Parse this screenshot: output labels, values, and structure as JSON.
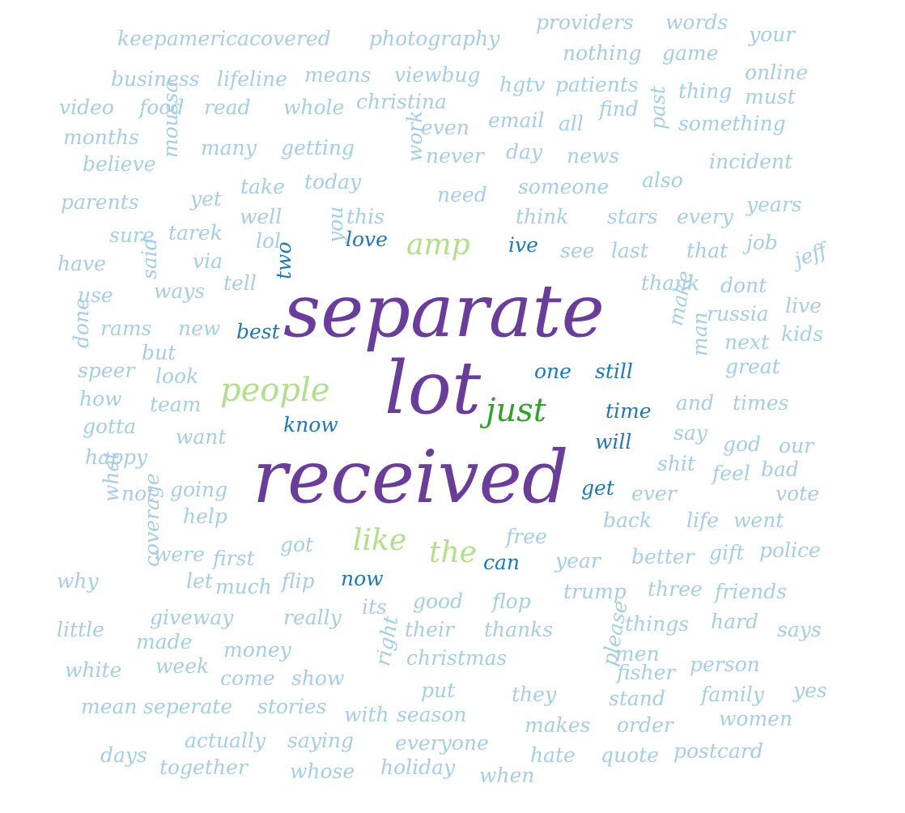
{
  "palette": {
    "dark_purple": "#6a3d9a",
    "mid_green": "#33a02c",
    "light_green": "#b2df8a",
    "mid_blue": "#1f78b4",
    "light_blue": "#a6cee3"
  },
  "words": [
    {
      "text": "separate",
      "tier": "xl",
      "color": "dark_purple"
    },
    {
      "text": "lot",
      "tier": "xl",
      "color": "dark_purple"
    },
    {
      "text": "received",
      "tier": "xl",
      "color": "dark_purple"
    },
    {
      "text": "people",
      "tier": "l",
      "color": "light_green"
    },
    {
      "text": "just",
      "tier": "l",
      "color": "mid_green"
    },
    {
      "text": "amp",
      "tier": "m",
      "color": "light_green"
    },
    {
      "text": "like",
      "tier": "m",
      "color": "light_green"
    },
    {
      "text": "the",
      "tier": "m",
      "color": "light_green"
    },
    {
      "text": "love",
      "tier": "s",
      "color": "mid_blue"
    },
    {
      "text": "ive",
      "tier": "s",
      "color": "mid_blue"
    },
    {
      "text": "best",
      "tier": "s",
      "color": "mid_blue"
    },
    {
      "text": "two",
      "tier": "s",
      "color": "mid_blue"
    },
    {
      "text": "know",
      "tier": "s",
      "color": "mid_blue"
    },
    {
      "text": "one",
      "tier": "s",
      "color": "mid_blue"
    },
    {
      "text": "still",
      "tier": "s",
      "color": "mid_blue"
    },
    {
      "text": "time",
      "tier": "s",
      "color": "mid_blue"
    },
    {
      "text": "will",
      "tier": "s",
      "color": "mid_blue"
    },
    {
      "text": "get",
      "tier": "s",
      "color": "mid_blue"
    },
    {
      "text": "can",
      "tier": "s",
      "color": "mid_blue"
    },
    {
      "text": "now",
      "tier": "s",
      "color": "mid_blue"
    },
    {
      "text": "keepamericacovered",
      "tier": "xs",
      "color": "light_blue"
    },
    {
      "text": "photography",
      "tier": "xs",
      "color": "light_blue"
    },
    {
      "text": "providers",
      "tier": "xs",
      "color": "light_blue"
    },
    {
      "text": "words",
      "tier": "xs",
      "color": "light_blue"
    },
    {
      "text": "your",
      "tier": "xs",
      "color": "light_blue"
    },
    {
      "text": "nothing",
      "tier": "xs",
      "color": "light_blue"
    },
    {
      "text": "game",
      "tier": "xs",
      "color": "light_blue"
    },
    {
      "text": "business",
      "tier": "xs",
      "color": "light_blue"
    },
    {
      "text": "lifeline",
      "tier": "xs",
      "color": "light_blue"
    },
    {
      "text": "means",
      "tier": "xs",
      "color": "light_blue"
    },
    {
      "text": "viewbug",
      "tier": "xs",
      "color": "light_blue"
    },
    {
      "text": "hgtv",
      "tier": "xs",
      "color": "light_blue"
    },
    {
      "text": "patients",
      "tier": "xs",
      "color": "light_blue"
    },
    {
      "text": "online",
      "tier": "xs",
      "color": "light_blue"
    },
    {
      "text": "video",
      "tier": "xs",
      "color": "light_blue"
    },
    {
      "text": "food",
      "tier": "xs",
      "color": "light_blue"
    },
    {
      "text": "read",
      "tier": "xs",
      "color": "light_blue"
    },
    {
      "text": "whole",
      "tier": "xs",
      "color": "light_blue"
    },
    {
      "text": "christina",
      "tier": "xs",
      "color": "light_blue"
    },
    {
      "text": "find",
      "tier": "xs",
      "color": "light_blue"
    },
    {
      "text": "thing",
      "tier": "xs",
      "color": "light_blue"
    },
    {
      "text": "must",
      "tier": "xs",
      "color": "light_blue"
    },
    {
      "text": "months",
      "tier": "xs",
      "color": "light_blue"
    },
    {
      "text": "moussa",
      "tier": "xs",
      "color": "light_blue"
    },
    {
      "text": "even",
      "tier": "xs",
      "color": "light_blue"
    },
    {
      "text": "email",
      "tier": "xs",
      "color": "light_blue"
    },
    {
      "text": "all",
      "tier": "xs",
      "color": "light_blue"
    },
    {
      "text": "past",
      "tier": "xs",
      "color": "light_blue"
    },
    {
      "text": "something",
      "tier": "xs",
      "color": "light_blue"
    },
    {
      "text": "believe",
      "tier": "xs",
      "color": "light_blue"
    },
    {
      "text": "many",
      "tier": "xs",
      "color": "light_blue"
    },
    {
      "text": "getting",
      "tier": "xs",
      "color": "light_blue"
    },
    {
      "text": "work",
      "tier": "xs",
      "color": "light_blue"
    },
    {
      "text": "never",
      "tier": "xs",
      "color": "light_blue"
    },
    {
      "text": "day",
      "tier": "xs",
      "color": "light_blue"
    },
    {
      "text": "news",
      "tier": "xs",
      "color": "light_blue"
    },
    {
      "text": "incident",
      "tier": "xs",
      "color": "light_blue"
    },
    {
      "text": "parents",
      "tier": "xs",
      "color": "light_blue"
    },
    {
      "text": "yet",
      "tier": "xs",
      "color": "light_blue"
    },
    {
      "text": "take",
      "tier": "xs",
      "color": "light_blue"
    },
    {
      "text": "today",
      "tier": "xs",
      "color": "light_blue"
    },
    {
      "text": "need",
      "tier": "xs",
      "color": "light_blue"
    },
    {
      "text": "someone",
      "tier": "xs",
      "color": "light_blue"
    },
    {
      "text": "also",
      "tier": "xs",
      "color": "light_blue"
    },
    {
      "text": "well",
      "tier": "xs",
      "color": "light_blue"
    },
    {
      "text": "this",
      "tier": "xs",
      "color": "light_blue"
    },
    {
      "text": "think",
      "tier": "xs",
      "color": "light_blue"
    },
    {
      "text": "stars",
      "tier": "xs",
      "color": "light_blue"
    },
    {
      "text": "every",
      "tier": "xs",
      "color": "light_blue"
    },
    {
      "text": "years",
      "tier": "xs",
      "color": "light_blue"
    },
    {
      "text": "sure",
      "tier": "xs",
      "color": "light_blue"
    },
    {
      "text": "tarek",
      "tier": "xs",
      "color": "light_blue"
    },
    {
      "text": "lol",
      "tier": "xs",
      "color": "light_blue"
    },
    {
      "text": "you",
      "tier": "xs",
      "color": "light_blue"
    },
    {
      "text": "see",
      "tier": "xs",
      "color": "light_blue"
    },
    {
      "text": "last",
      "tier": "xs",
      "color": "light_blue"
    },
    {
      "text": "that",
      "tier": "xs",
      "color": "light_blue"
    },
    {
      "text": "job",
      "tier": "xs",
      "color": "light_blue"
    },
    {
      "text": "have",
      "tier": "xs",
      "color": "light_blue"
    },
    {
      "text": "said",
      "tier": "xs",
      "color": "light_blue"
    },
    {
      "text": "via",
      "tier": "xs",
      "color": "light_blue"
    },
    {
      "text": "jeff",
      "tier": "xs",
      "color": "light_blue"
    },
    {
      "text": "use",
      "tier": "xs",
      "color": "light_blue"
    },
    {
      "text": "ways",
      "tier": "xs",
      "color": "light_blue"
    },
    {
      "text": "tell",
      "tier": "xs",
      "color": "light_blue"
    },
    {
      "text": "thank",
      "tier": "xs",
      "color": "light_blue"
    },
    {
      "text": "dont",
      "tier": "xs",
      "color": "light_blue"
    },
    {
      "text": "live",
      "tier": "xs",
      "color": "light_blue"
    },
    {
      "text": "make",
      "tier": "xs",
      "color": "light_blue"
    },
    {
      "text": "russia",
      "tier": "xs",
      "color": "light_blue"
    },
    {
      "text": "done",
      "tier": "xs",
      "color": "light_blue"
    },
    {
      "text": "rams",
      "tier": "xs",
      "color": "light_blue"
    },
    {
      "text": "new",
      "tier": "xs",
      "color": "light_blue"
    },
    {
      "text": "man",
      "tier": "xs",
      "color": "light_blue"
    },
    {
      "text": "next",
      "tier": "xs",
      "color": "light_blue"
    },
    {
      "text": "kids",
      "tier": "xs",
      "color": "light_blue"
    },
    {
      "text": "but",
      "tier": "xs",
      "color": "light_blue"
    },
    {
      "text": "speer",
      "tier": "xs",
      "color": "light_blue"
    },
    {
      "text": "look",
      "tier": "xs",
      "color": "light_blue"
    },
    {
      "text": "great",
      "tier": "xs",
      "color": "light_blue"
    },
    {
      "text": "how",
      "tier": "xs",
      "color": "light_blue"
    },
    {
      "text": "team",
      "tier": "xs",
      "color": "light_blue"
    },
    {
      "text": "and",
      "tier": "xs",
      "color": "light_blue"
    },
    {
      "text": "times",
      "tier": "xs",
      "color": "light_blue"
    },
    {
      "text": "gotta",
      "tier": "xs",
      "color": "light_blue"
    },
    {
      "text": "want",
      "tier": "xs",
      "color": "light_blue"
    },
    {
      "text": "say",
      "tier": "xs",
      "color": "light_blue"
    },
    {
      "text": "god",
      "tier": "xs",
      "color": "light_blue"
    },
    {
      "text": "our",
      "tier": "xs",
      "color": "light_blue"
    },
    {
      "text": "happy",
      "tier": "xs",
      "color": "light_blue"
    },
    {
      "text": "what",
      "tier": "xs",
      "color": "light_blue"
    },
    {
      "text": "shit",
      "tier": "xs",
      "color": "light_blue"
    },
    {
      "text": "feel",
      "tier": "xs",
      "color": "light_blue"
    },
    {
      "text": "bad",
      "tier": "xs",
      "color": "light_blue"
    },
    {
      "text": "not",
      "tier": "xs",
      "color": "light_blue"
    },
    {
      "text": "going",
      "tier": "xs",
      "color": "light_blue"
    },
    {
      "text": "ever",
      "tier": "xs",
      "color": "light_blue"
    },
    {
      "text": "vote",
      "tier": "xs",
      "color": "light_blue"
    },
    {
      "text": "help",
      "tier": "xs",
      "color": "light_blue"
    },
    {
      "text": "coverage",
      "tier": "xs",
      "color": "light_blue"
    },
    {
      "text": "back",
      "tier": "xs",
      "color": "light_blue"
    },
    {
      "text": "life",
      "tier": "xs",
      "color": "light_blue"
    },
    {
      "text": "went",
      "tier": "xs",
      "color": "light_blue"
    },
    {
      "text": "free",
      "tier": "xs",
      "color": "light_blue"
    },
    {
      "text": "were",
      "tier": "xs",
      "color": "light_blue"
    },
    {
      "text": "first",
      "tier": "xs",
      "color": "light_blue"
    },
    {
      "text": "got",
      "tier": "xs",
      "color": "light_blue"
    },
    {
      "text": "year",
      "tier": "xs",
      "color": "light_blue"
    },
    {
      "text": "better",
      "tier": "xs",
      "color": "light_blue"
    },
    {
      "text": "gift",
      "tier": "xs",
      "color": "light_blue"
    },
    {
      "text": "police",
      "tier": "xs",
      "color": "light_blue"
    },
    {
      "text": "why",
      "tier": "xs",
      "color": "light_blue"
    },
    {
      "text": "let",
      "tier": "xs",
      "color": "light_blue"
    },
    {
      "text": "much",
      "tier": "xs",
      "color": "light_blue"
    },
    {
      "text": "flip",
      "tier": "xs",
      "color": "light_blue"
    },
    {
      "text": "its",
      "tier": "xs",
      "color": "light_blue"
    },
    {
      "text": "good",
      "tier": "xs",
      "color": "light_blue"
    },
    {
      "text": "flop",
      "tier": "xs",
      "color": "light_blue"
    },
    {
      "text": "trump",
      "tier": "xs",
      "color": "light_blue"
    },
    {
      "text": "three",
      "tier": "xs",
      "color": "light_blue"
    },
    {
      "text": "friends",
      "tier": "xs",
      "color": "light_blue"
    },
    {
      "text": "giveway",
      "tier": "xs",
      "color": "light_blue"
    },
    {
      "text": "really",
      "tier": "xs",
      "color": "light_blue"
    },
    {
      "text": "their",
      "tier": "xs",
      "color": "light_blue"
    },
    {
      "text": "thanks",
      "tier": "xs",
      "color": "light_blue"
    },
    {
      "text": "things",
      "tier": "xs",
      "color": "light_blue"
    },
    {
      "text": "hard",
      "tier": "xs",
      "color": "light_blue"
    },
    {
      "text": "says",
      "tier": "xs",
      "color": "light_blue"
    },
    {
      "text": "little",
      "tier": "xs",
      "color": "light_blue"
    },
    {
      "text": "made",
      "tier": "xs",
      "color": "light_blue"
    },
    {
      "text": "money",
      "tier": "xs",
      "color": "light_blue"
    },
    {
      "text": "right",
      "tier": "xs",
      "color": "light_blue"
    },
    {
      "text": "christmas",
      "tier": "xs",
      "color": "light_blue"
    },
    {
      "text": "men",
      "tier": "xs",
      "color": "light_blue"
    },
    {
      "text": "white",
      "tier": "xs",
      "color": "light_blue"
    },
    {
      "text": "week",
      "tier": "xs",
      "color": "light_blue"
    },
    {
      "text": "come",
      "tier": "xs",
      "color": "light_blue"
    },
    {
      "text": "show",
      "tier": "xs",
      "color": "light_blue"
    },
    {
      "text": "please",
      "tier": "xs",
      "color": "light_blue"
    },
    {
      "text": "fisher",
      "tier": "xs",
      "color": "light_blue"
    },
    {
      "text": "person",
      "tier": "xs",
      "color": "light_blue"
    },
    {
      "text": "put",
      "tier": "xs",
      "color": "light_blue"
    },
    {
      "text": "they",
      "tier": "xs",
      "color": "light_blue"
    },
    {
      "text": "stand",
      "tier": "xs",
      "color": "light_blue"
    },
    {
      "text": "family",
      "tier": "xs",
      "color": "light_blue"
    },
    {
      "text": "yes",
      "tier": "xs",
      "color": "light_blue"
    },
    {
      "text": "mean",
      "tier": "xs",
      "color": "light_blue"
    },
    {
      "text": "seperate",
      "tier": "xs",
      "color": "light_blue"
    },
    {
      "text": "stories",
      "tier": "xs",
      "color": "light_blue"
    },
    {
      "text": "with",
      "tier": "xs",
      "color": "light_blue"
    },
    {
      "text": "season",
      "tier": "xs",
      "color": "light_blue"
    },
    {
      "text": "makes",
      "tier": "xs",
      "color": "light_blue"
    },
    {
      "text": "order",
      "tier": "xs",
      "color": "light_blue"
    },
    {
      "text": "women",
      "tier": "xs",
      "color": "light_blue"
    },
    {
      "text": "actually",
      "tier": "xs",
      "color": "light_blue"
    },
    {
      "text": "saying",
      "tier": "xs",
      "color": "light_blue"
    },
    {
      "text": "everyone",
      "tier": "xs",
      "color": "light_blue"
    },
    {
      "text": "hate",
      "tier": "xs",
      "color": "light_blue"
    },
    {
      "text": "quote",
      "tier": "xs",
      "color": "light_blue"
    },
    {
      "text": "postcard",
      "tier": "xs",
      "color": "light_blue"
    },
    {
      "text": "days",
      "tier": "xs",
      "color": "light_blue"
    },
    {
      "text": "together",
      "tier": "xs",
      "color": "light_blue"
    },
    {
      "text": "whose",
      "tier": "xs",
      "color": "light_blue"
    },
    {
      "text": "holiday",
      "tier": "xs",
      "color": "light_blue"
    },
    {
      "text": "when",
      "tier": "xs",
      "color": "light_blue"
    }
  ]
}
